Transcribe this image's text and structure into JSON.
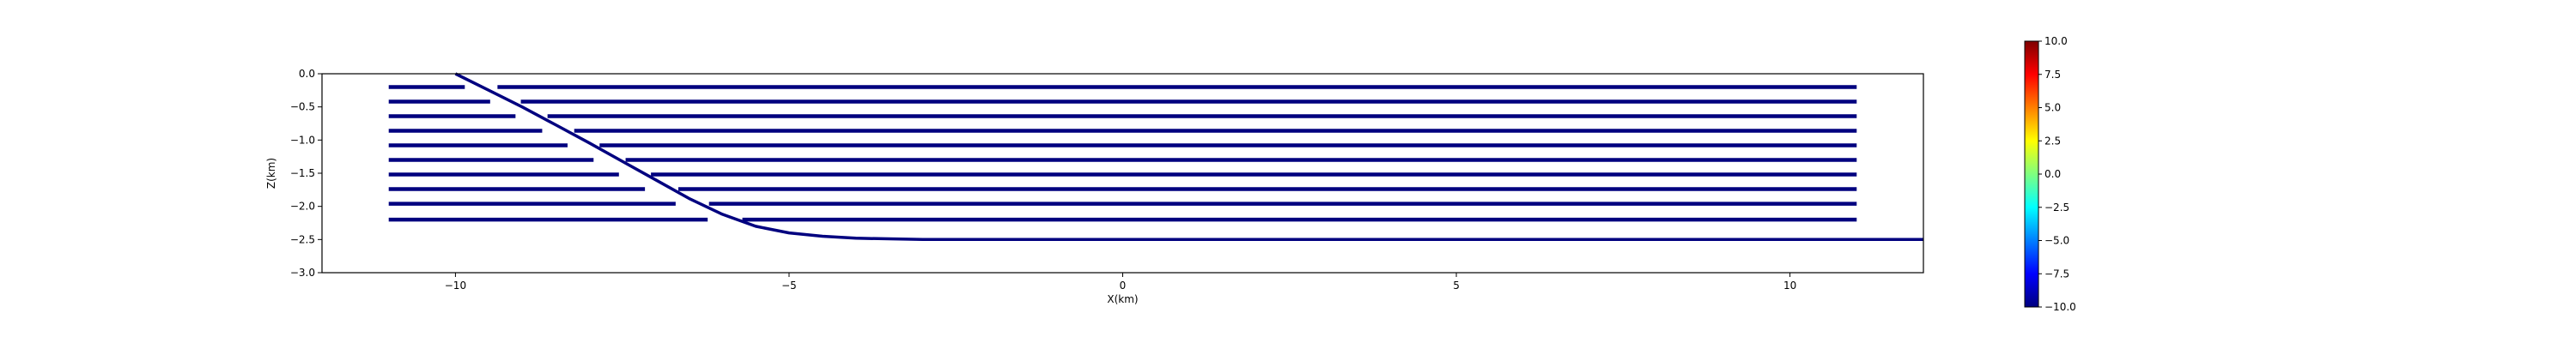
{
  "chart_data": {
    "type": "line",
    "title": "",
    "xlabel": "X(km)",
    "ylabel": "Z(km)",
    "xlim": [
      -12,
      12
    ],
    "ylim": [
      -3.0,
      0.0
    ],
    "x_ticks": [
      -10,
      -5,
      0,
      5,
      10
    ],
    "x_tick_labels": [
      "−10",
      "−5",
      "0",
      "5",
      "10"
    ],
    "y_ticks": [
      0.0,
      -0.5,
      -1.0,
      -1.5,
      -2.0,
      -2.5,
      -3.0
    ],
    "y_tick_labels": [
      "0.0",
      "−0.5",
      "−1.0",
      "−1.5",
      "−2.0",
      "−2.5",
      "−3.0"
    ],
    "grid": false,
    "line_color": "#00007f",
    "fault_curve": {
      "points": [
        [
          -10.0,
          0.0
        ],
        [
          -9.5,
          -0.25
        ],
        [
          -9.0,
          -0.5
        ],
        [
          -8.5,
          -0.77
        ],
        [
          -8.0,
          -1.04
        ],
        [
          -7.5,
          -1.32
        ],
        [
          -7.0,
          -1.6
        ],
        [
          -6.5,
          -1.88
        ],
        [
          -6.0,
          -2.12
        ],
        [
          -5.5,
          -2.3
        ],
        [
          -5.0,
          -2.4
        ],
        [
          -4.5,
          -2.45
        ],
        [
          -4.0,
          -2.48
        ],
        [
          -3.0,
          -2.5
        ],
        [
          12.0,
          -2.5
        ]
      ]
    },
    "layers": [
      {
        "z": -0.2,
        "segments": [
          [
            -11.0,
            -9.86
          ],
          [
            -9.37,
            11.0
          ]
        ]
      },
      {
        "z": -0.42,
        "segments": [
          [
            -11.0,
            -9.48
          ],
          [
            -9.02,
            11.0
          ]
        ]
      },
      {
        "z": -0.64,
        "segments": [
          [
            -11.0,
            -9.1
          ],
          [
            -8.62,
            11.0
          ]
        ]
      },
      {
        "z": -0.86,
        "segments": [
          [
            -11.0,
            -8.7
          ],
          [
            -8.22,
            11.0
          ]
        ]
      },
      {
        "z": -1.08,
        "segments": [
          [
            -11.0,
            -8.32
          ],
          [
            -7.84,
            11.0
          ]
        ]
      },
      {
        "z": -1.3,
        "segments": [
          [
            -11.0,
            -7.93
          ],
          [
            -7.45,
            11.0
          ]
        ]
      },
      {
        "z": -1.52,
        "segments": [
          [
            -11.0,
            -7.55
          ],
          [
            -7.07,
            11.0
          ]
        ]
      },
      {
        "z": -1.74,
        "segments": [
          [
            -11.0,
            -7.16
          ],
          [
            -6.66,
            11.0
          ]
        ]
      },
      {
        "z": -1.96,
        "segments": [
          [
            -11.0,
            -6.7
          ],
          [
            -6.2,
            11.0
          ]
        ]
      },
      {
        "z": -2.2,
        "segments": [
          [
            -11.0,
            -6.22
          ],
          [
            -5.7,
            11.0
          ]
        ]
      }
    ],
    "colorbar": {
      "min": -10.0,
      "max": 10.0,
      "ticks": [
        10.0,
        7.5,
        5.0,
        2.5,
        0.0,
        -2.5,
        -5.0,
        -7.5,
        -10.0
      ],
      "tick_labels": [
        "10.0",
        "7.5",
        "5.0",
        "2.5",
        "0.0",
        "−2.5",
        "−5.0",
        "−7.5",
        "−10.0"
      ],
      "colormap": "jet",
      "colors": [
        "#00007f",
        "#0000ff",
        "#007fff",
        "#00ffff",
        "#7fff7f",
        "#ffff00",
        "#ff7f00",
        "#ff0000",
        "#7f0000"
      ]
    }
  }
}
